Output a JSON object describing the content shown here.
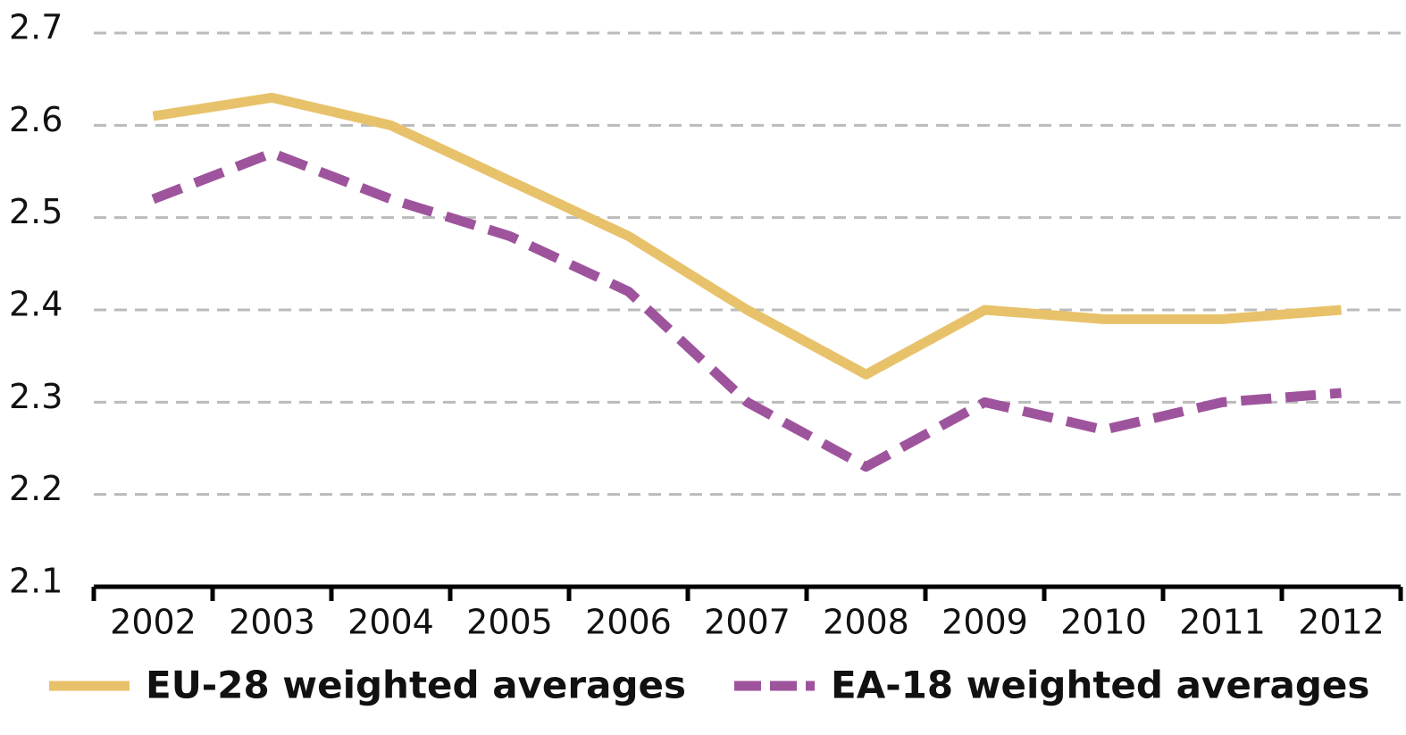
{
  "chart_data": {
    "type": "line",
    "categories": [
      "2002",
      "2003",
      "2004",
      "2005",
      "2006",
      "2007",
      "2008",
      "2009",
      "2010",
      "2011",
      "2012"
    ],
    "series": [
      {
        "name": "EU-28 weighted averages",
        "color": "#e8c26a",
        "dashed": false,
        "values": [
          2.61,
          2.63,
          2.6,
          2.54,
          2.48,
          2.4,
          2.33,
          2.4,
          2.39,
          2.39,
          2.4
        ]
      },
      {
        "name": "EA-18 weighted averages",
        "color": "#9e549c",
        "dashed": true,
        "values": [
          2.52,
          2.57,
          2.52,
          2.48,
          2.42,
          2.3,
          2.23,
          2.3,
          2.27,
          2.3,
          2.31
        ]
      }
    ],
    "ylim": [
      2.1,
      2.7
    ],
    "yticks": [
      2.1,
      2.2,
      2.3,
      2.4,
      2.5,
      2.6,
      2.7
    ],
    "grid": true
  }
}
